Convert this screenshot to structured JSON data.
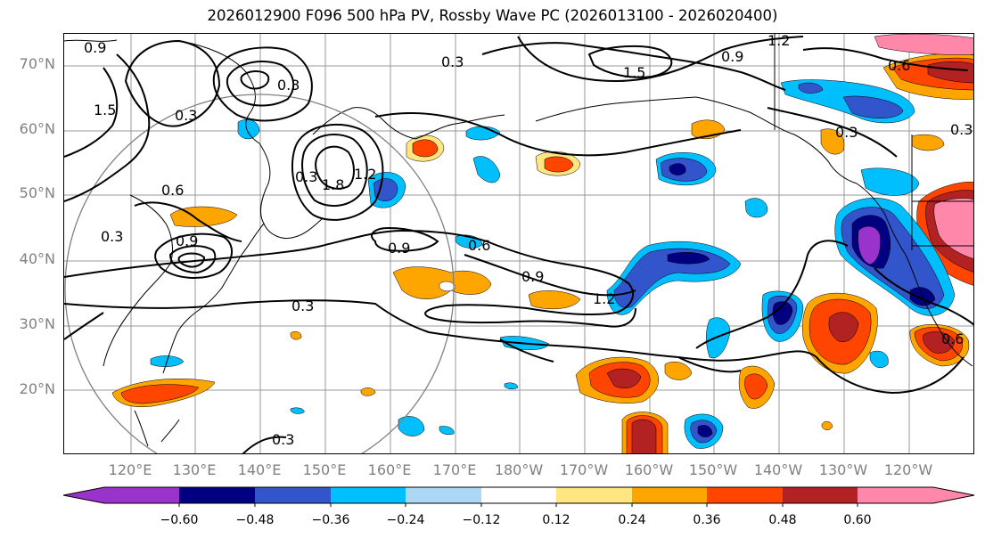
{
  "title": "2026012900 F096 500 hPa PV, Rossby Wave PC (2026013100 - 2026020400)",
  "lat_labels": [
    "70°N",
    "60°N",
    "50°N",
    "40°N",
    "30°N",
    "20°N"
  ],
  "lon_labels": [
    "120°E",
    "130°E",
    "140°E",
    "150°E",
    "160°E",
    "170°E",
    "180°W",
    "170°W",
    "160°W",
    "150°W",
    "140°W",
    "130°W",
    "120°W"
  ],
  "contour_labels": [
    "1.2",
    "0.9",
    "0.6",
    "1.5",
    "0.3",
    "0.3",
    "1.5",
    "0.3",
    "1.8",
    "1.2",
    "0.3",
    "0.6",
    "0.9",
    "0.3",
    "0.9",
    "0.6",
    "0.9",
    "1.2",
    "0.3",
    "0.3",
    "0.3",
    "0.6",
    "0.3",
    "0.9"
  ],
  "colorbar": {
    "colors": [
      "#9933cc",
      "#000080",
      "#3355cc",
      "#00bfff",
      "#add8f5",
      "#ffffff",
      "#ffe680",
      "#ffa500",
      "#ff4500",
      "#b22222",
      "#ff88aa"
    ],
    "tick_labels": [
      "−0.60",
      "−0.48",
      "−0.36",
      "−0.24",
      "−0.12",
      "0.12",
      "0.24",
      "0.36",
      "0.48",
      "0.60"
    ]
  },
  "colors": {
    "purple": "#9933cc",
    "navy": "#000080",
    "royal": "#3355cc",
    "deepsky": "#00bfff",
    "lightblue": "#add8f5",
    "yellow": "#ffe680",
    "orange": "#ffa500",
    "redorange": "#ff4500",
    "firebrick": "#b22222",
    "pink": "#ff88aa",
    "grid": "#999999",
    "label": "#808080"
  }
}
